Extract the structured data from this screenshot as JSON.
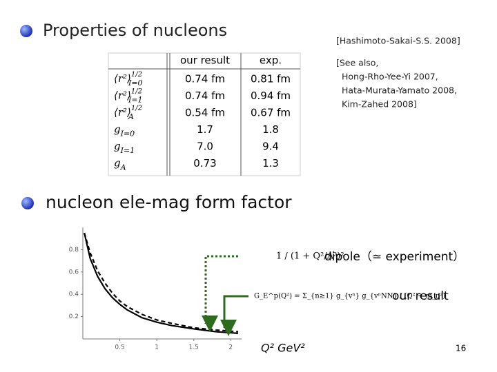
{
  "section_1": {
    "title": "Properties of nucleons"
  },
  "references": {
    "main": "[Hashimoto-Sakai-S.S. 2008]",
    "see_also": [
      "[See also,",
      "Hong-Rho-Yee-Yi 2007,",
      "Hata-Murata-Yamato 2008,",
      "Kim-Zahed 2008]"
    ]
  },
  "table": {
    "headers": [
      "our result",
      "exp."
    ],
    "rows": [
      {
        "label": {
          "base": "⟨r²⟩",
          "sup": "1/2",
          "sub": "I=0"
        },
        "cells": [
          "0.74 fm",
          "0.81 fm"
        ]
      },
      {
        "label": {
          "base": "⟨r²⟩",
          "sup": "1/2",
          "sub": "I=1"
        },
        "cells": [
          "0.74 fm",
          "0.94 fm"
        ]
      },
      {
        "label": {
          "base": "⟨r²⟩",
          "sup": "1/2",
          "sub": "A"
        },
        "cells": [
          "0.54 fm",
          "0.67 fm"
        ]
      },
      {
        "label": {
          "base": "g",
          "sub": "I=0"
        },
        "cells": [
          "1.7",
          "1.8"
        ]
      },
      {
        "label": {
          "base": "g",
          "sub": "I=1"
        },
        "cells": [
          "7.0",
          "9.4"
        ]
      },
      {
        "label": {
          "base": "g",
          "sub": "A"
        },
        "cells": [
          "0.73",
          "1.3"
        ]
      }
    ]
  },
  "section_2": {
    "title": "nucleon ele-mag form factor"
  },
  "chart_data": {
    "type": "line",
    "x": [
      0.02,
      0.1,
      0.2,
      0.3,
      0.4,
      0.5,
      0.6,
      0.8,
      1.0,
      1.2,
      1.5,
      1.8,
      2.0,
      2.1
    ],
    "series": [
      {
        "name": "dipole",
        "color": "#000000",
        "dash": true,
        "values": [
          0.95,
          0.77,
          0.61,
          0.5,
          0.41,
          0.34,
          0.29,
          0.22,
          0.17,
          0.14,
          0.1,
          0.08,
          0.07,
          0.065
        ]
      },
      {
        "name": "our result",
        "color": "#000000",
        "dash": false,
        "values": [
          0.95,
          0.72,
          0.56,
          0.45,
          0.37,
          0.31,
          0.26,
          0.19,
          0.15,
          0.12,
          0.09,
          0.065,
          0.055,
          0.05
        ]
      }
    ],
    "xlim": [
      0,
      2.1
    ],
    "ylim": [
      0,
      1
    ],
    "xticks": [
      0.5,
      1,
      1.5,
      2
    ],
    "yticks": [
      0.2,
      0.4,
      0.6,
      0.8
    ]
  },
  "formulas": {
    "dipole": "1 / (1 + Q²/Λ²)²",
    "ours": "G_E^p(Q²) = Σ_{n≥1} g_{vⁿ} g_{vⁿNN} / (Q² + m_n²)"
  },
  "annotations": {
    "dipole": "dipole（≃ experiment）",
    "ours": "our result",
    "axis": "Q²  GeV²"
  },
  "page_number": "16"
}
